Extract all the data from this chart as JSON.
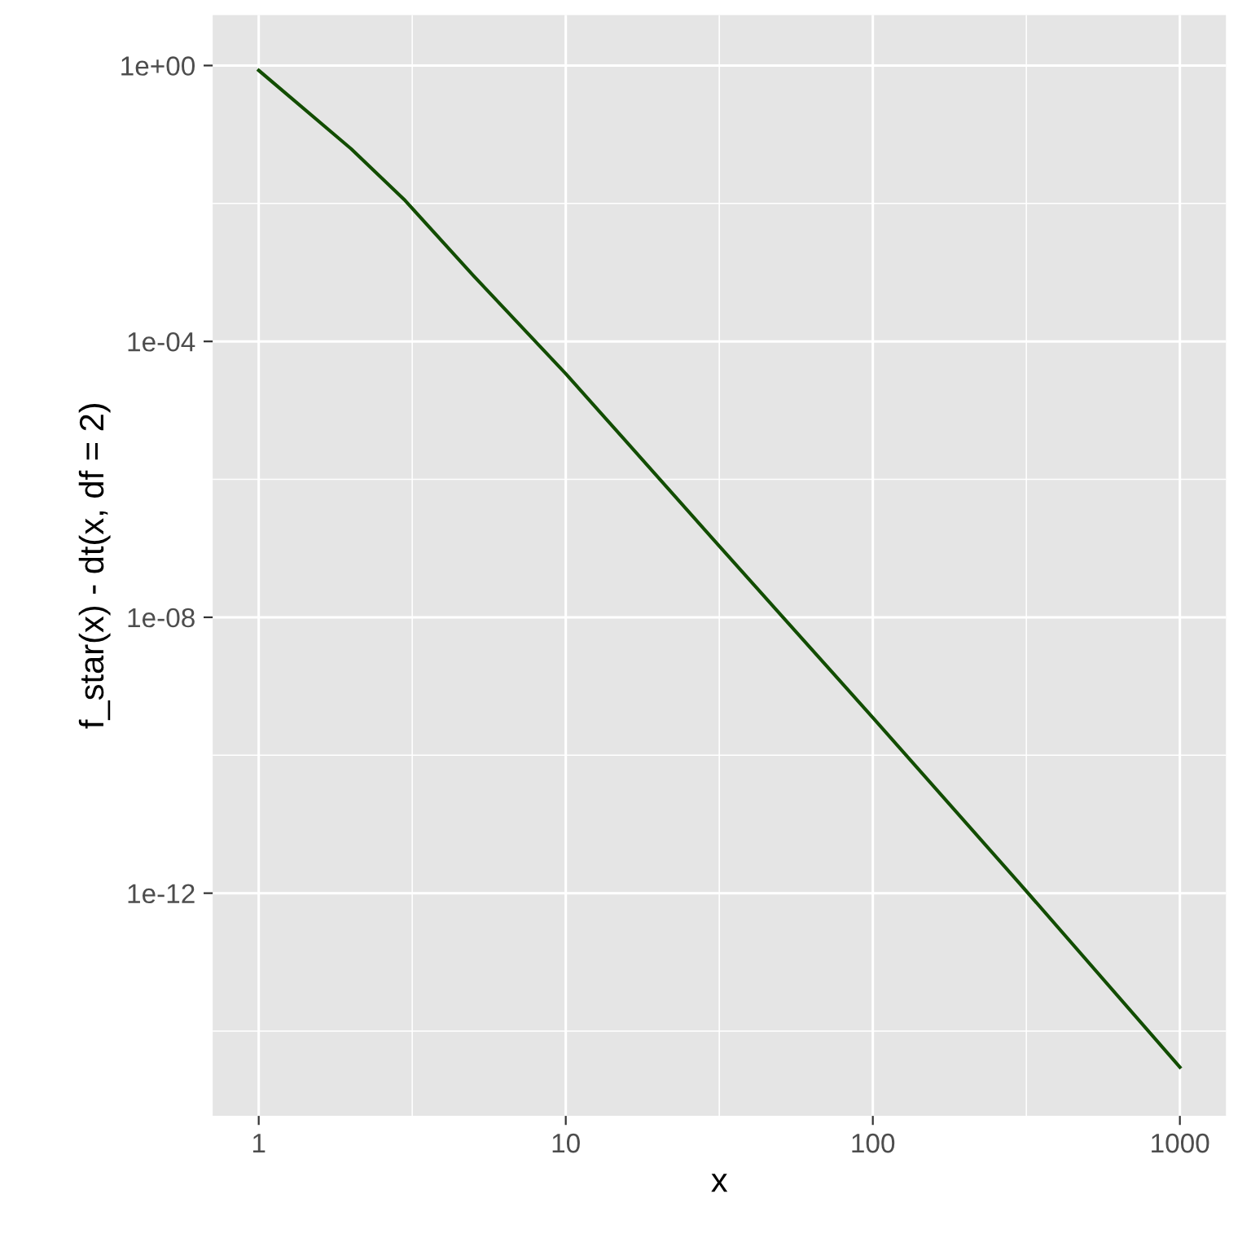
{
  "chart_data": {
    "type": "line",
    "xlabel": "x",
    "ylabel": "f_star(x) - dt(x, df = 2)",
    "log": "xy",
    "grid": true,
    "x": [
      1,
      2,
      3,
      5,
      10,
      30,
      100,
      300,
      1000
    ],
    "series": [
      {
        "color": "#124d00",
        "values": [
          0.85,
          0.062,
          0.011,
          0.0009,
          3.4e-05,
          1.4e-07,
          3.5e-10,
          1.4e-12,
          3e-15
        ]
      }
    ],
    "xlim": [
      0.708,
      1413
    ],
    "xticks": [
      1,
      10,
      100,
      1000
    ],
    "ylim": [
      5.9e-16,
      5.4
    ],
    "yticks": [
      {
        "value": 1,
        "label": "1e+00"
      },
      {
        "value": 0.0001,
        "label": "1e-04"
      },
      {
        "value": 1e-08,
        "label": "1e-08"
      },
      {
        "value": 1e-12,
        "label": "1e-12"
      }
    ]
  }
}
